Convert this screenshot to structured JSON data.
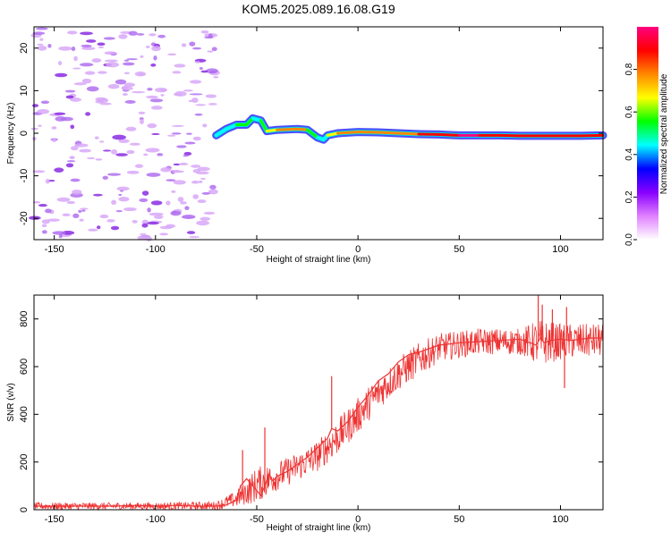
{
  "title": "KOM5.2025.089.16.08.G19",
  "chart_data": [
    {
      "type": "heatmap",
      "xlabel": "Height of straight line (km)",
      "ylabel": "Frequency (Hz)",
      "xlim": [
        -160,
        121
      ],
      "ylim": [
        -25,
        25
      ],
      "xticks": [
        -150,
        -100,
        -50,
        0,
        50,
        100
      ],
      "xtick_labels": [
        "-150",
        "-100",
        "-50",
        "0",
        "50",
        "100"
      ],
      "yticks": [
        -20,
        -10,
        0,
        10,
        20
      ],
      "ytick_labels": [
        "-20",
        "-10",
        "0",
        "10",
        "20"
      ],
      "colorbar": {
        "label": "Normalized spectral amplitude",
        "range": [
          0,
          1
        ],
        "ticks": [
          0,
          0.2,
          0.4,
          0.6,
          0.8
        ],
        "tick_labels": [
          "0.0",
          "0.2",
          "0.4",
          "0.6",
          "0.8"
        ],
        "colors": [
          "#ffffff",
          "#e080ff",
          "#8800ff",
          "#0000ff",
          "#00ffff",
          "#00ff00",
          "#ffff00",
          "#ff8800",
          "#ff0000",
          "#ff0080"
        ]
      },
      "ridge": {
        "x": [
          -70,
          -65,
          -60,
          -55,
          -52,
          -48,
          -45,
          -40,
          -30,
          -25,
          -20,
          -17,
          -15,
          -10,
          0,
          10,
          20,
          30,
          40,
          50,
          60,
          70,
          80,
          90,
          100,
          110,
          121
        ],
        "y": [
          -0.5,
          1.0,
          2.0,
          2.0,
          3.5,
          3.0,
          0.5,
          0.8,
          1.0,
          0.8,
          -1.0,
          -1.5,
          -0.5,
          0.0,
          0.3,
          0.2,
          0.0,
          -0.2,
          -0.3,
          -0.5,
          -0.5,
          -0.5,
          -0.6,
          -0.6,
          -0.6,
          -0.6,
          -0.5
        ],
        "amplitude": [
          0.3,
          0.5,
          0.45,
          0.55,
          0.45,
          0.5,
          0.6,
          0.8,
          0.85,
          0.7,
          0.45,
          0.4,
          0.55,
          0.75,
          0.7,
          0.8,
          0.75,
          0.85,
          0.9,
          0.95,
          0.95,
          0.92,
          0.9,
          0.8,
          0.92,
          0.95,
          0.9
        ]
      }
    },
    {
      "type": "line",
      "xlabel": "Height of straight line (km)",
      "ylabel": "SNR (v/v)",
      "xlim": [
        -160,
        121
      ],
      "ylim": [
        0,
        900
      ],
      "xticks": [
        -150,
        -100,
        -50,
        0,
        50,
        100
      ],
      "xtick_labels": [
        "-150",
        "-100",
        "-50",
        "0",
        "50",
        "100"
      ],
      "yticks": [
        0,
        200,
        400,
        600,
        800
      ],
      "ytick_labels": [
        "0",
        "200",
        "400",
        "600",
        "800"
      ],
      "color": "#ee3333",
      "series": [
        {
          "x": [
            -160,
            -150,
            -140,
            -130,
            -120,
            -110,
            -100,
            -90,
            -80,
            -70,
            -65,
            -60,
            -58,
            -55,
            -53,
            -50,
            -48,
            -46,
            -44,
            -42,
            -40,
            -35,
            -30,
            -25,
            -20,
            -15,
            -13,
            -10,
            -5,
            0,
            5,
            10,
            15,
            20,
            25,
            30,
            40,
            50,
            60,
            70,
            80,
            85,
            88,
            90,
            92,
            95,
            100,
            105,
            110,
            115,
            121
          ],
          "y": [
            15,
            15,
            15,
            15,
            15,
            18,
            15,
            18,
            15,
            15,
            20,
            40,
            100,
            130,
            110,
            80,
            60,
            100,
            150,
            120,
            140,
            160,
            190,
            220,
            260,
            300,
            340,
            330,
            370,
            430,
            480,
            540,
            570,
            620,
            650,
            660,
            690,
            700,
            705,
            710,
            715,
            700,
            690,
            720,
            700,
            710,
            715,
            710,
            715,
            720,
            720
          ]
        }
      ],
      "band": {
        "x": [
          -160,
          -100,
          -70,
          -60,
          -50,
          -40,
          -30,
          -20,
          -10,
          0,
          10,
          20,
          30,
          40,
          60,
          80,
          90,
          100,
          121
        ],
        "low": [
          0,
          0,
          0,
          10,
          30,
          80,
          120,
          160,
          230,
          320,
          420,
          500,
          560,
          620,
          650,
          650,
          600,
          630,
          640
        ],
        "high": [
          30,
          30,
          35,
          80,
          180,
          200,
          240,
          290,
          380,
          470,
          560,
          640,
          700,
          740,
          760,
          760,
          800,
          780,
          780
        ]
      },
      "spikes": [
        {
          "x": -57,
          "y": 250
        },
        {
          "x": -46,
          "y": 345
        },
        {
          "x": -13,
          "y": 560
        },
        {
          "x": 89,
          "y": 900
        },
        {
          "x": 91,
          "y": 860
        },
        {
          "x": 96,
          "y": 840
        },
        {
          "x": 103,
          "y": 850
        },
        {
          "x": 102,
          "y": 510
        }
      ]
    }
  ]
}
